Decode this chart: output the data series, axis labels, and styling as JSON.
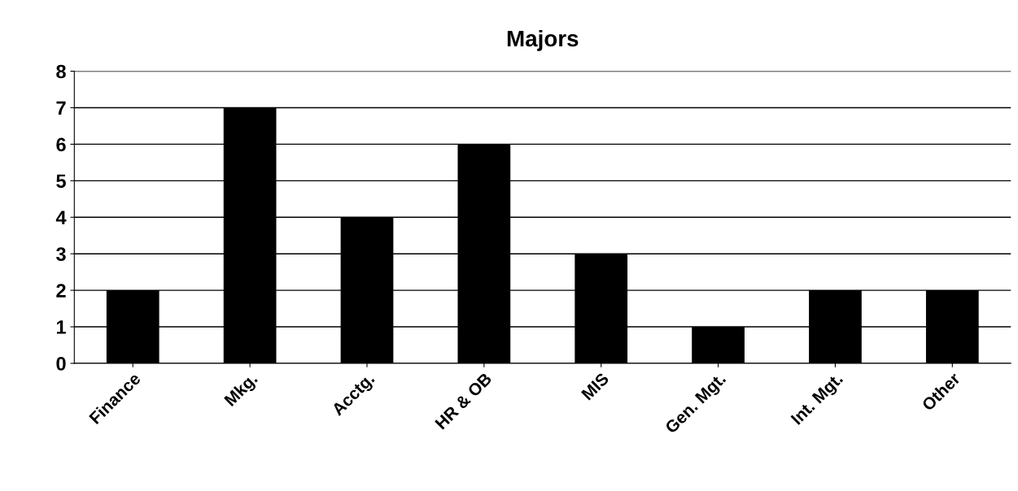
{
  "chart_data": {
    "type": "bar",
    "title": "Majors",
    "categories": [
      "Finance",
      "Mkg.",
      "Acctg.",
      "HR & OB",
      "MIS",
      "Gen. Mgt.",
      "Int. Mgt.",
      "Other"
    ],
    "values": [
      2,
      7,
      4,
      6,
      3,
      1,
      2,
      2
    ],
    "color": "#000000",
    "ylim": [
      0,
      8
    ],
    "yticks": [
      0,
      1,
      2,
      3,
      4,
      5,
      6,
      7,
      8
    ],
    "grid": "y"
  }
}
